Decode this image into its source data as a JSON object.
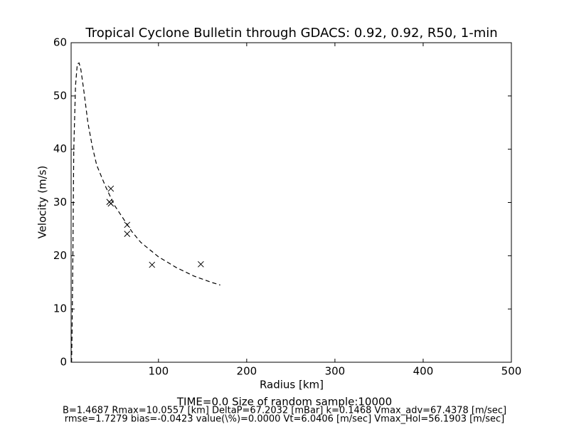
{
  "chart_data": {
    "type": "scatter",
    "title": "Tropical Cyclone Bulletin through GDACS: 0.92, 0.92, R50, 1-min",
    "xlabel": "Radius [km]",
    "ylabel": "Velocity (m/s)",
    "annotations": [
      "TIME=0.0      Size of random sample:10000",
      "B=1.4687 Rmax=10.0557 [km]  DeltaP=67.2032 [mBar] k=0.1468 Vmax_adv=67.4378 [m/sec]",
      "rmse=1.7279 bias=-0.0423 value(\\%)=0.0000 Vt=6.0406 [m/sec] Vmax_Hol=56.1903 [m/sec]"
    ],
    "xlim": [
      1,
      500
    ],
    "ylim": [
      0,
      60
    ],
    "xticks": [
      100,
      200,
      300,
      400,
      500
    ],
    "yticks": [
      0,
      10,
      20,
      30,
      40,
      50,
      60
    ],
    "series": [
      {
        "marker": "x",
        "color": "#000000",
        "x": [
          46,
          44.4,
          46,
          64.5,
          64.5,
          92.7,
          148
        ],
        "values": [
          32.6,
          30.1,
          29.8,
          25.8,
          24.1,
          18.3,
          18.4
        ]
      },
      {
        "style": "dashed",
        "color": "#000000",
        "x": [
          1.5,
          2,
          3,
          4,
          6,
          8,
          10,
          12,
          15,
          20,
          25,
          30,
          40,
          50,
          60,
          70,
          80,
          100,
          120,
          140,
          160,
          170
        ],
        "values": [
          0,
          5,
          20,
          40,
          52,
          56,
          56.2,
          55,
          51.5,
          45,
          40.5,
          37,
          33,
          29.5,
          27,
          24.5,
          22.5,
          19.8,
          17.8,
          16.2,
          15,
          14.5
        ]
      }
    ]
  }
}
